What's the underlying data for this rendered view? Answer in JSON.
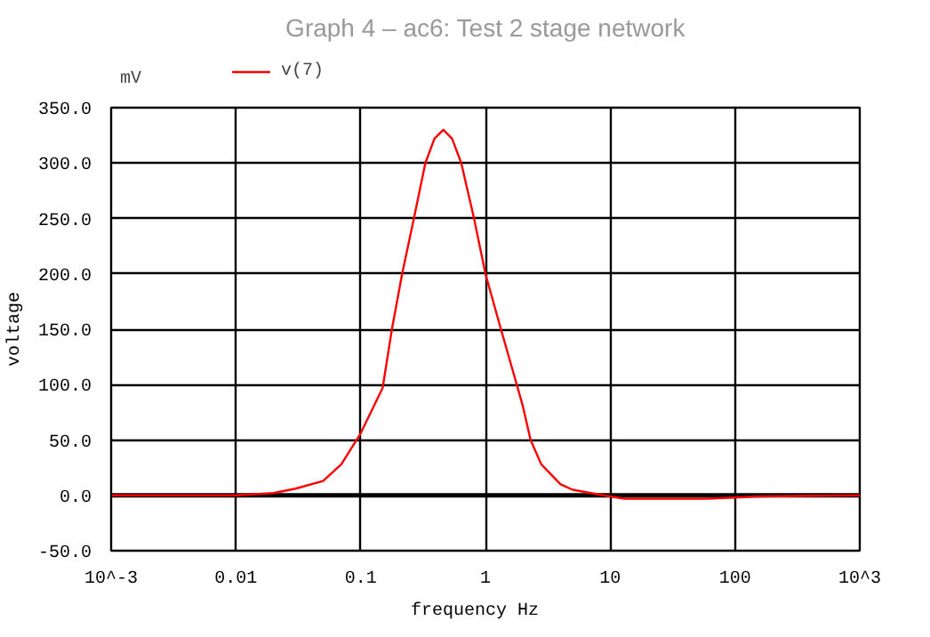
{
  "chart_data": {
    "type": "line",
    "title": "Graph 4 – ac6: Test 2 stage network",
    "xlabel": "frequency   Hz",
    "ylabel": "voltage",
    "annotations": [
      "mV"
    ],
    "x": [
      0.001,
      0.01,
      0.02,
      0.03,
      0.05,
      0.07,
      0.1,
      0.15,
      0.178,
      0.215,
      0.267,
      0.33,
      0.39,
      0.46,
      0.54,
      0.64,
      0.81,
      1,
      1.3,
      1.7,
      2,
      2.3,
      2.8,
      4,
      5,
      7,
      10,
      13,
      60,
      100,
      150,
      1000
    ],
    "series": [
      {
        "name": "v(7)",
        "color": "#ff0000",
        "values": [
          0,
          0,
          2,
          6,
          13,
          28,
          56,
          97,
          150,
          200,
          250,
          300,
          322,
          330,
          322,
          300,
          250,
          200,
          154,
          108,
          80,
          50,
          28,
          10,
          5,
          2,
          -1,
          -3,
          -3,
          -2,
          -1,
          0
        ]
      }
    ],
    "log": "x",
    "xlim": [
      0.001,
      1000
    ],
    "xticks": [
      {
        "value": 0.001,
        "label": "10^-3"
      },
      0.01,
      0.1,
      1,
      10,
      100,
      {
        "value": 1000,
        "label": "10^3"
      }
    ],
    "ylim": [
      -50,
      350
    ],
    "yticks": [
      {
        "value": -50,
        "label": "-50.0"
      },
      {
        "value": 0,
        "label": "0.0"
      },
      {
        "value": 50,
        "label": "50.0"
      },
      {
        "value": 100,
        "label": "100.0"
      },
      {
        "value": 150,
        "label": "150.0"
      },
      {
        "value": 200,
        "label": "200.0"
      },
      {
        "value": 250,
        "label": "250.0"
      },
      {
        "value": 300,
        "label": "300.0"
      },
      {
        "value": 350,
        "label": "350.0"
      }
    ],
    "ref_lines": [
      {
        "axis": "y",
        "value": 0,
        "color": "#000000"
      }
    ],
    "grid": true,
    "legend": "top left",
    "line_style": "solid",
    "marker": "none"
  }
}
